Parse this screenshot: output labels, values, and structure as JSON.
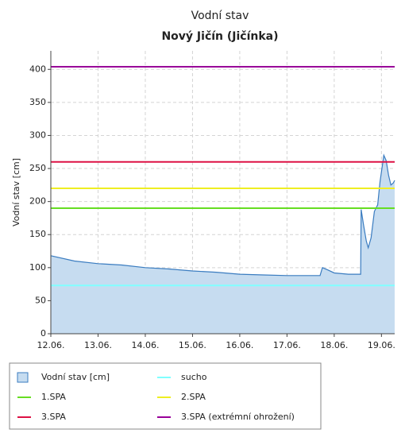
{
  "chart_data": {
    "type": "area",
    "title": "Vodní stav",
    "subtitle": "Nový Jičín (Jičínka)",
    "ylabel": "Vodní stav [cm]",
    "x": [
      12,
      12.5,
      13,
      13.5,
      14,
      14.5,
      15,
      15.5,
      16,
      16.5,
      17,
      17.5,
      17.7,
      17.75,
      17.85,
      18,
      18.3,
      18.56,
      18.57,
      18.62,
      18.68,
      18.72,
      18.78,
      18.85,
      18.92,
      18.97,
      19.05,
      19.1,
      19.15,
      19.2,
      19.25,
      19.28
    ],
    "series": [
      {
        "name": "Vodní stav [cm]",
        "color": "#3a7cc0",
        "fill": "#c6dcf0",
        "values": [
          118,
          110,
          106,
          104,
          100,
          98,
          95,
          93,
          90,
          89,
          88,
          88,
          88,
          100,
          97,
          92,
          90,
          90,
          188,
          165,
          140,
          130,
          145,
          185,
          195,
          230,
          270,
          262,
          240,
          225,
          228,
          232
        ]
      }
    ],
    "thresholds": [
      {
        "name": "sucho",
        "color": "#80ffff",
        "value": 73
      },
      {
        "name": "1.SPA",
        "color": "#66dd22",
        "value": 190
      },
      {
        "name": "2.SPA",
        "color": "#eeee22",
        "value": 220
      },
      {
        "name": "3.SPA",
        "color": "#dd1144",
        "value": 260
      },
      {
        "name": "3.SPA (extrémní ohrožení)",
        "color": "#990099",
        "value": 404
      }
    ],
    "xlim": [
      12,
      19.28
    ],
    "xticks": [
      {
        "value": 12,
        "label": "12.06."
      },
      {
        "value": 13,
        "label": "13.06."
      },
      {
        "value": 14,
        "label": "14.06."
      },
      {
        "value": 15,
        "label": "15.06."
      },
      {
        "value": 16,
        "label": "16.06."
      },
      {
        "value": 17,
        "label": "17.06."
      },
      {
        "value": 18,
        "label": "18.06."
      },
      {
        "value": 19,
        "label": "19.06."
      }
    ],
    "ylim": [
      0,
      428
    ],
    "yticks": [
      0,
      50,
      100,
      150,
      200,
      250,
      300,
      350,
      400
    ],
    "grid": true
  }
}
